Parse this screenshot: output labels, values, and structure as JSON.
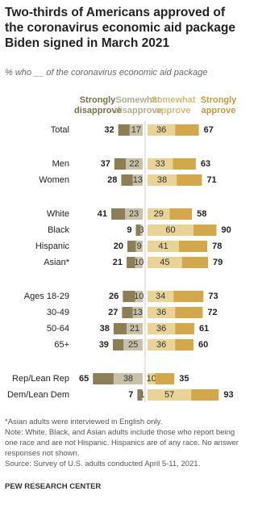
{
  "chart_data": {
    "type": "diverging_bar",
    "title": "Two-thirds of Americans approved of the coronavirus economic aid package Biden signed in March 2021",
    "subtitle": "% who __ of the coronavirus economic aid package",
    "categories": [
      "Total",
      "Men",
      "Women",
      "White",
      "Black",
      "Hispanic",
      "Asian*",
      "Ages 18-29",
      "30-49",
      "50-64",
      "65+",
      "Rep/Lean Rep",
      "Dem/Lean Dem"
    ],
    "series": [
      {
        "name": "Strongly disapprove",
        "color": "#8c7f56",
        "side": "left",
        "values": [
          15,
          15,
          15,
          18,
          6,
          11,
          11,
          16,
          14,
          17,
          14,
          27,
          6
        ]
      },
      {
        "name": "Somewhat disapprove",
        "color": "#c9c1a6",
        "side": "left",
        "values": [
          17,
          22,
          13,
          23,
          3,
          9,
          10,
          10,
          13,
          21,
          25,
          38,
          1
        ]
      },
      {
        "name": "Somewhat approve",
        "color": "#e8d496",
        "side": "right",
        "values": [
          36,
          33,
          38,
          29,
          60,
          41,
          45,
          34,
          36,
          36,
          36,
          10,
          57
        ]
      },
      {
        "name": "Strongly approve",
        "color": "#d2a84a",
        "side": "right",
        "values": [
          31,
          30,
          33,
          29,
          30,
          37,
          34,
          39,
          36,
          25,
          24,
          25,
          36
        ]
      }
    ],
    "disapprove_totals": [
      32,
      37,
      28,
      41,
      9,
      20,
      21,
      26,
      27,
      38,
      39,
      65,
      7
    ],
    "approve_totals": [
      67,
      63,
      71,
      58,
      90,
      78,
      79,
      73,
      72,
      61,
      60,
      35,
      93
    ],
    "notes": [
      "*Asian adults were interviewed in English only.",
      "Note: White, Black, and Asian adults include those who report being one race and are not Hispanic. Hispanics are of any race. No answer responses not shown.",
      "Source: Survey of U.S. adults conducted April 5-11, 2021."
    ],
    "source": "PEW RESEARCH CENTER"
  }
}
